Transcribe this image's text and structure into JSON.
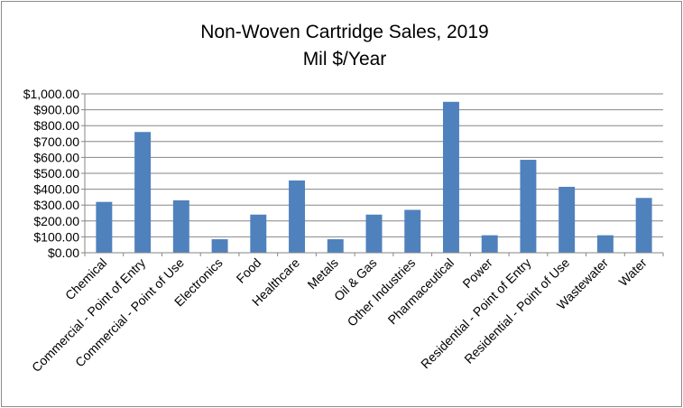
{
  "chart_data": {
    "type": "bar",
    "title": "Non-Woven Cartridge Sales,  2019",
    "subtitle": "Mil $/Year",
    "xlabel": "",
    "ylabel": "",
    "categories": [
      "Chemical",
      "Commercial - Point of Entry",
      "Commercial - Point of Use",
      "Electronics",
      "Food",
      "Healthcare",
      "Metals",
      "Oil & Gas",
      "Other Industries",
      "Pharmaceutical",
      "Power",
      "Residential - Point of Entry",
      "Residential - Point of Use",
      "Wastewater",
      "Water"
    ],
    "values": [
      320,
      760,
      330,
      85,
      240,
      455,
      85,
      240,
      270,
      950,
      110,
      585,
      415,
      110,
      345
    ],
    "ylim": [
      0,
      1000
    ],
    "yticks": [
      0,
      100,
      200,
      300,
      400,
      500,
      600,
      700,
      800,
      900,
      1000
    ],
    "ytick_labels": [
      "$0.00",
      "$100.00",
      "$200.00",
      "$300.00",
      "$400.00",
      "$500.00",
      "$600.00",
      "$700.00",
      "$800.00",
      "$900.00",
      "$1,000.00"
    ],
    "grid": true,
    "legend": "none",
    "bar_color": "#4f81bd"
  }
}
